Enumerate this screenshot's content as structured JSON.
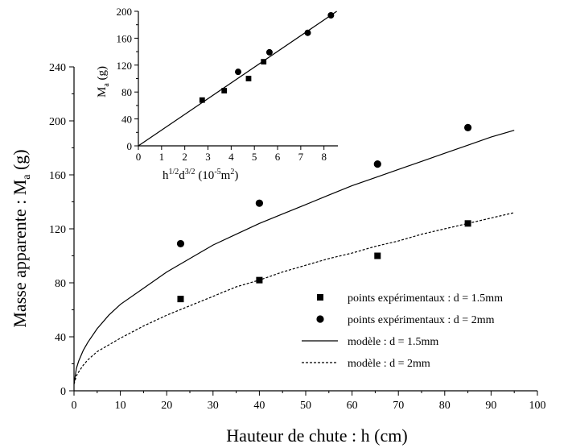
{
  "chart_data": [
    {
      "type": "scatter",
      "xlabel": "Hauteur de chute : h (cm)",
      "ylabel": "Masse apparente : M",
      "ylabel_sub": "a",
      "ylabel_tail": " (g)",
      "xlim": [
        0,
        100
      ],
      "ylim": [
        0,
        240
      ],
      "xticks": [
        "0",
        "10",
        "20",
        "30",
        "40",
        "50",
        "60",
        "70",
        "80",
        "90",
        "100"
      ],
      "yticks": [
        "0",
        "40",
        "80",
        "120",
        "160",
        "200",
        "240"
      ],
      "grid": false,
      "legend_position": "bottom-right",
      "series": [
        {
          "name": "points expérimentaux : d = 1.5mm",
          "marker": "square",
          "x": [
            23,
            40,
            65.5,
            85
          ],
          "y": [
            68,
            82,
            100,
            124
          ]
        },
        {
          "name": "points expérimentaux : d = 2mm",
          "marker": "circle",
          "x": [
            23,
            40,
            65.5,
            85
          ],
          "y": [
            109,
            139,
            168,
            195
          ]
        },
        {
          "name": "modèle : d = 1.5mm",
          "style": "solid",
          "x": [
            0,
            0.5,
            1,
            2,
            3,
            5,
            7.5,
            10,
            15,
            20,
            25,
            30,
            35,
            40,
            45,
            50,
            55,
            60,
            65,
            70,
            75,
            80,
            85,
            90,
            95
          ],
          "y": [
            5,
            16.5,
            22,
            30,
            36,
            46,
            56,
            64,
            76,
            88,
            98,
            108,
            116,
            124,
            131,
            138,
            145,
            152,
            158,
            164,
            170,
            176,
            182,
            188,
            193
          ]
        },
        {
          "name": "modèle : d = 2mm",
          "style": "dashed",
          "x": [
            0,
            0.5,
            1,
            2,
            3,
            5,
            7.5,
            10,
            15,
            20,
            25,
            30,
            35,
            40,
            45,
            50,
            55,
            60,
            65,
            70,
            75,
            80,
            85,
            90,
            95
          ],
          "y": [
            5,
            11,
            14,
            19,
            23,
            29,
            34,
            39,
            48,
            56,
            63,
            70,
            77,
            82,
            88,
            93,
            98,
            102,
            107,
            111,
            116,
            120,
            124,
            128,
            132
          ]
        }
      ]
    },
    {
      "type": "scatter",
      "xlabel": "h",
      "xlabel_sup1": "1/2",
      "xlabel_mid": "d",
      "xlabel_sup2": "3/2",
      "xlabel_tail1": " (10",
      "xlabel_sup3": "-5",
      "xlabel_tail2": "m",
      "xlabel_sup4": "2",
      "xlabel_end": ")",
      "ylabel": "M",
      "ylabel_sub": "a",
      "ylabel_tail": " (g)",
      "xlim": [
        0,
        8.6
      ],
      "ylim": [
        0,
        200
      ],
      "xticks": [
        "0",
        "1",
        "2",
        "3",
        "4",
        "5",
        "6",
        "7",
        "8"
      ],
      "yticks": [
        "0",
        "40",
        "80",
        "120",
        "160",
        "200"
      ],
      "grid": false,
      "series": [
        {
          "marker": "square",
          "x": [
            2.75,
            3.7,
            4.75,
            5.4
          ],
          "y": [
            68,
            82,
            100,
            125
          ]
        },
        {
          "marker": "circle",
          "x": [
            4.3,
            5.65,
            7.3,
            8.3
          ],
          "y": [
            110,
            139,
            168,
            194
          ]
        },
        {
          "style": "solid",
          "x": [
            0,
            8.55
          ],
          "y": [
            0,
            200
          ]
        }
      ]
    }
  ]
}
